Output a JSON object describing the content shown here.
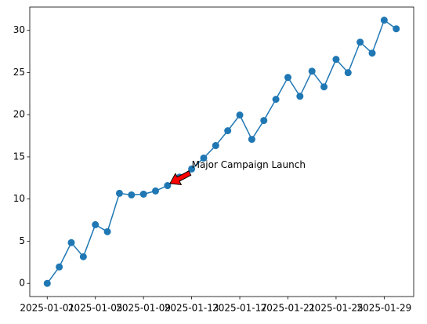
{
  "chart_data": {
    "type": "line",
    "x": [
      "2025-01-01",
      "2025-01-02",
      "2025-01-03",
      "2025-01-04",
      "2025-01-05",
      "2025-01-06",
      "2025-01-07",
      "2025-01-08",
      "2025-01-09",
      "2025-01-10",
      "2025-01-11",
      "2025-01-12",
      "2025-01-13",
      "2025-01-14",
      "2025-01-15",
      "2025-01-16",
      "2025-01-17",
      "2025-01-18",
      "2025-01-19",
      "2025-01-20",
      "2025-01-21",
      "2025-01-22",
      "2025-01-23",
      "2025-01-24",
      "2025-01-25",
      "2025-01-26",
      "2025-01-27",
      "2025-01-28",
      "2025-01-29",
      "2025-01-30"
    ],
    "series": [
      {
        "color": "#1f77b4",
        "values": [
          0,
          1.95,
          4.83,
          3.16,
          6.96,
          6.13,
          10.68,
          10.49,
          10.58,
          10.96,
          11.6,
          12.6,
          13.56,
          14.86,
          16.34,
          18.1,
          19.96,
          17.08,
          19.31,
          21.82,
          24.42,
          22.19,
          25.16,
          23.3,
          26.56,
          24.98,
          28.6,
          27.3,
          31.2,
          30.18
        ]
      }
    ],
    "xlim": [
      "2024-12-30T13:12:00Z",
      "2025-01-31T10:48:00Z"
    ],
    "xticks": [
      "2025-01-01",
      "2025-01-05",
      "2025-01-09",
      "2025-01-13",
      "2025-01-17",
      "2025-01-21",
      "2025-01-25",
      "2025-01-29"
    ],
    "ylim": [
      -1.56,
      32.76
    ],
    "yticks": [
      0,
      5,
      10,
      15,
      20,
      25,
      30
    ],
    "annotations": [
      {
        "text": "Major Campaign Launch",
        "x": "2025-01-11",
        "y": 11.6,
        "text_x": "2025-01-13",
        "text_y": 14.0,
        "color": "red"
      }
    ]
  }
}
